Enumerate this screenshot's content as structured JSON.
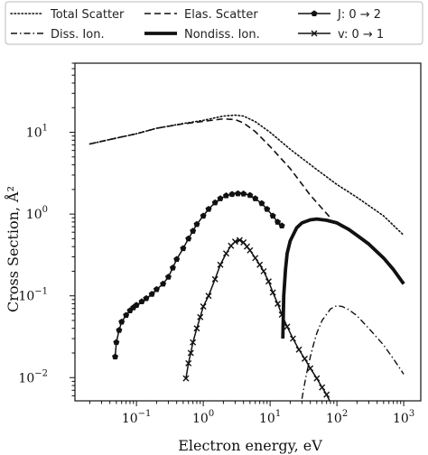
{
  "chart_data": {
    "type": "line",
    "title": "",
    "xlabel": "Electron energy, eV",
    "ylabel": "Cross Section, Å²",
    "xscale": "log",
    "yscale": "log",
    "xlim": [
      0.012,
      1800
    ],
    "ylim": [
      0.0052,
      70
    ],
    "xticks": [
      {
        "value": 0.1,
        "base": "10",
        "exp": "−1"
      },
      {
        "value": 1,
        "base": "10",
        "exp": "0"
      },
      {
        "value": 10,
        "base": "10",
        "exp": "1"
      },
      {
        "value": 100,
        "base": "10",
        "exp": "2"
      },
      {
        "value": 1000,
        "base": "10",
        "exp": "3"
      }
    ],
    "yticks": [
      {
        "value": 0.01,
        "base": "10",
        "exp": "−2"
      },
      {
        "value": 0.1,
        "base": "10",
        "exp": "−1"
      },
      {
        "value": 1,
        "base": "10",
        "exp": "0"
      },
      {
        "value": 10,
        "base": "10",
        "exp": "1"
      }
    ],
    "grid": false,
    "legend": {
      "placement": "above plot",
      "columns": 3
    },
    "series": [
      {
        "name": "Total Scatter",
        "style": "dotted",
        "marker": "none",
        "x": [
          0.02,
          0.05,
          0.1,
          0.2,
          0.5,
          1,
          2,
          3,
          4,
          6,
          10,
          20,
          50,
          100,
          200,
          500,
          1000
        ],
        "y": [
          7.2,
          8.5,
          9.6,
          11.2,
          12.8,
          14.0,
          15.8,
          16.2,
          15.8,
          13.5,
          10.0,
          6.2,
          3.5,
          2.3,
          1.6,
          0.95,
          0.55
        ]
      },
      {
        "name": "Elas. Scatter",
        "style": "dashed",
        "marker": "none",
        "x": [
          0.02,
          0.05,
          0.1,
          0.2,
          0.5,
          1,
          2,
          3,
          4,
          6,
          10,
          20,
          40,
          80
        ],
        "y": [
          7.2,
          8.5,
          9.6,
          11.2,
          12.7,
          13.6,
          14.6,
          14.3,
          13.0,
          10.2,
          6.7,
          3.6,
          1.7,
          0.9
        ]
      },
      {
        "name": "J: 0 → 2",
        "style": "solid",
        "marker": "pentagon",
        "x": [
          0.048,
          0.05,
          0.055,
          0.06,
          0.07,
          0.08,
          0.09,
          0.1,
          0.12,
          0.14,
          0.17,
          0.2,
          0.25,
          0.3,
          0.35,
          0.4,
          0.5,
          0.6,
          0.7,
          0.8,
          1.0,
          1.2,
          1.5,
          1.8,
          2.2,
          2.7,
          3.3,
          4.0,
          5.0,
          6.0,
          7.5,
          9.0,
          11.0,
          13.0,
          15.0
        ],
        "y": [
          0.018,
          0.027,
          0.038,
          0.048,
          0.058,
          0.066,
          0.072,
          0.077,
          0.085,
          0.093,
          0.105,
          0.12,
          0.14,
          0.17,
          0.22,
          0.28,
          0.38,
          0.5,
          0.62,
          0.75,
          0.95,
          1.15,
          1.38,
          1.55,
          1.68,
          1.75,
          1.78,
          1.77,
          1.7,
          1.55,
          1.35,
          1.15,
          0.95,
          0.8,
          0.72
        ]
      },
      {
        "name": "v: 0 → 1",
        "style": "solid",
        "marker": "x",
        "x": [
          0.55,
          0.6,
          0.65,
          0.7,
          0.8,
          0.9,
          1.0,
          1.2,
          1.5,
          1.8,
          2.2,
          2.6,
          3.0,
          3.5,
          4.0,
          4.5,
          5.0,
          6.0,
          7.0,
          8.0,
          9.5,
          11.0,
          13.0,
          15.0,
          18.0,
          22.0,
          27.0,
          33.0,
          40.0,
          50.0,
          60.0,
          70.0,
          85.0
        ],
        "y": [
          0.0098,
          0.015,
          0.02,
          0.027,
          0.04,
          0.055,
          0.074,
          0.1,
          0.16,
          0.24,
          0.33,
          0.41,
          0.46,
          0.48,
          0.45,
          0.4,
          0.36,
          0.29,
          0.24,
          0.2,
          0.15,
          0.11,
          0.08,
          0.059,
          0.042,
          0.03,
          0.022,
          0.017,
          0.013,
          0.0098,
          0.0076,
          0.0062,
          0.0045
        ]
      },
      {
        "name": "Nondiss. Ion.",
        "style": "thick-solid",
        "marker": "none",
        "x": [
          15.5,
          16,
          17,
          18,
          20,
          25,
          30,
          40,
          50,
          70,
          100,
          150,
          200,
          300,
          500,
          700,
          1000
        ],
        "y": [
          0.03,
          0.1,
          0.21,
          0.33,
          0.47,
          0.68,
          0.78,
          0.85,
          0.87,
          0.84,
          0.78,
          0.65,
          0.55,
          0.43,
          0.29,
          0.21,
          0.14
        ]
      },
      {
        "name": "Diss. Ion.",
        "style": "dashdot",
        "marker": "none",
        "x": [
          30,
          32,
          35,
          40,
          45,
          50,
          60,
          80,
          100,
          120,
          150,
          200,
          300,
          500,
          700,
          1000
        ],
        "y": [
          0.0055,
          0.0075,
          0.011,
          0.018,
          0.026,
          0.035,
          0.05,
          0.069,
          0.076,
          0.074,
          0.068,
          0.057,
          0.04,
          0.025,
          0.017,
          0.011
        ]
      }
    ],
    "legend_entries": [
      {
        "label": "Total Scatter",
        "series": 0
      },
      {
        "label": "Elas. Scatter",
        "series": 1
      },
      {
        "label": "J: 0 → 2",
        "series": 2
      },
      {
        "label": "Diss. Ion.",
        "series": 5
      },
      {
        "label": "Nondiss. Ion.",
        "series": 4
      },
      {
        "label": "v: 0 → 1",
        "series": 3
      }
    ]
  }
}
